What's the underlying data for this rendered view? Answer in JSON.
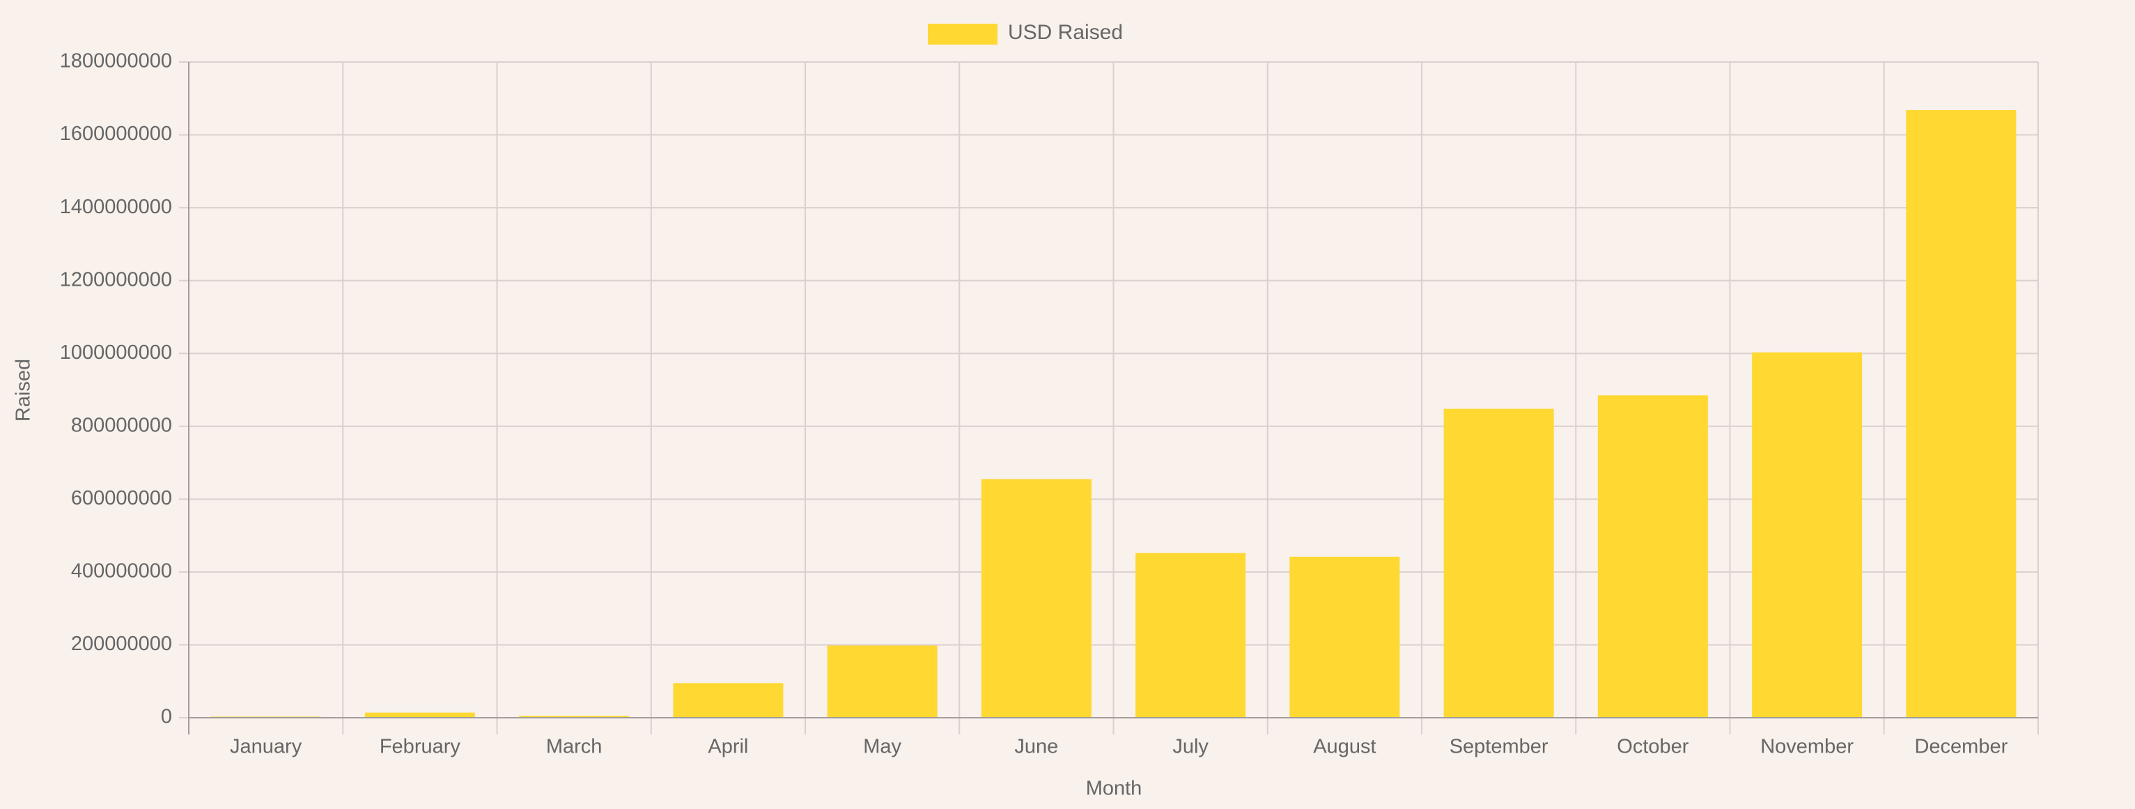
{
  "chart_data": {
    "type": "bar",
    "title": "",
    "legend": {
      "position": "top-center",
      "entries": [
        "USD Raised"
      ]
    },
    "xlabel": "Month",
    "ylabel": "Raised",
    "categories": [
      "January",
      "February",
      "March",
      "April",
      "May",
      "June",
      "July",
      "August",
      "September",
      "October",
      "November",
      "December"
    ],
    "series": [
      {
        "name": "USD Raised",
        "color": "#ffd831",
        "values": [
          3000000,
          14000000,
          5000000,
          95000000,
          198000000,
          655000000,
          452000000,
          442000000,
          848000000,
          885000000,
          1003000000,
          1668000000
        ]
      }
    ],
    "ylim": [
      0,
      1800000000
    ],
    "yticks": [
      "0",
      "200000000",
      "400000000",
      "600000000",
      "800000000",
      "1000000000",
      "1200000000",
      "1400000000",
      "1600000000",
      "1800000000"
    ],
    "grid": true,
    "colors": {
      "background": "#f8f1ec",
      "grid": "#dbd0cd",
      "axis": "#a39c9a",
      "text": "#666666"
    }
  }
}
